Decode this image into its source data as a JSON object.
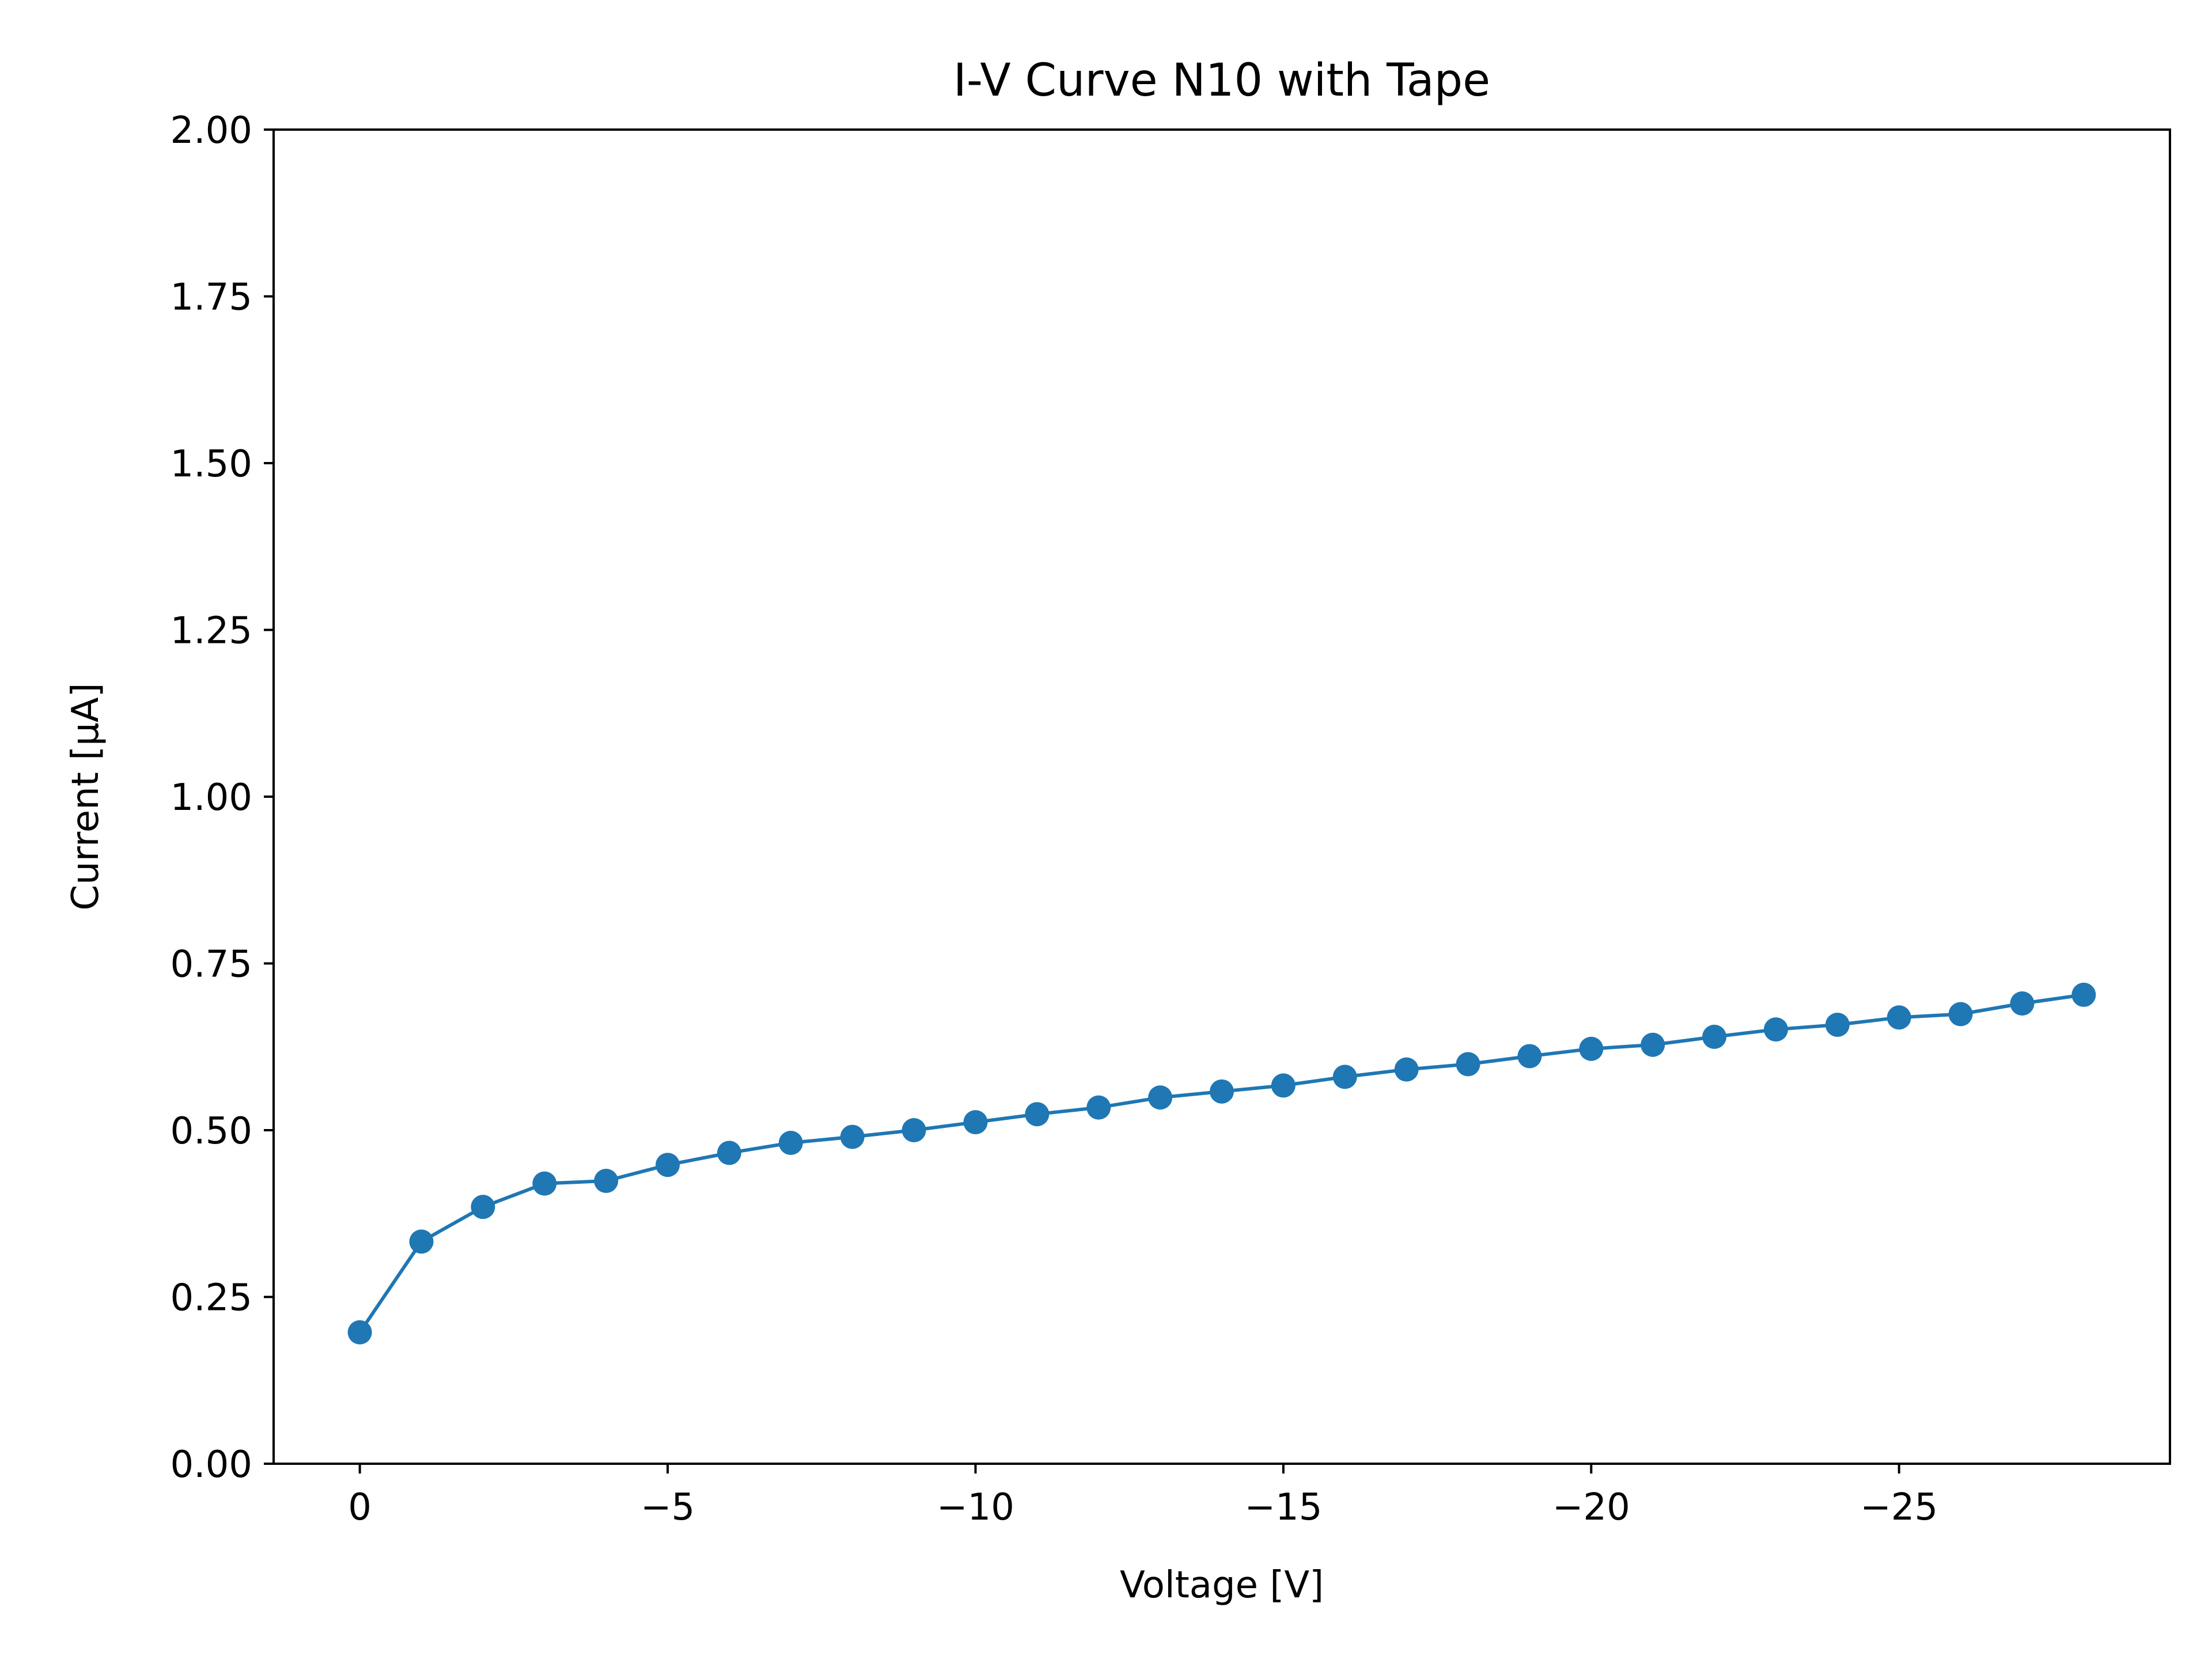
{
  "chart_data": {
    "type": "line",
    "title": "I-V Curve N10 with Tape",
    "xlabel": "Voltage [V]",
    "ylabel": "Current [μA]",
    "xlim": [
      1.4,
      -29.4
    ],
    "ylim": [
      0,
      2
    ],
    "x_inverted": true,
    "grid": false,
    "legend": "none",
    "xticks": [
      0,
      -5,
      -10,
      -15,
      -20,
      -25
    ],
    "xtick_labels": [
      "0",
      "−5",
      "−10",
      "−15",
      "−20",
      "−25"
    ],
    "yticks": [
      0,
      0.25,
      0.5,
      0.75,
      1.0,
      1.25,
      1.5,
      1.75,
      2.0
    ],
    "ytick_labels": [
      "0.00",
      "0.25",
      "0.50",
      "0.75",
      "1.00",
      "1.25",
      "1.50",
      "1.75",
      "2.00"
    ],
    "marker": "circle",
    "series": [
      {
        "color": "#1f77b4",
        "x": [
          0,
          -1,
          -2,
          -3,
          -4,
          -5,
          -6,
          -7,
          -8,
          -9,
          -10,
          -11,
          -12,
          -13,
          -14,
          -15,
          -16,
          -17,
          -18,
          -19,
          -20,
          -21,
          -22,
          -23,
          -24,
          -25,
          -26,
          -27,
          -28
        ],
        "y": [
          0.197,
          0.333,
          0.385,
          0.42,
          0.424,
          0.448,
          0.466,
          0.481,
          0.49,
          0.5,
          0.512,
          0.524,
          0.534,
          0.549,
          0.558,
          0.567,
          0.58,
          0.591,
          0.599,
          0.611,
          0.622,
          0.628,
          0.64,
          0.651,
          0.658,
          0.669,
          0.674,
          0.69,
          0.703
        ]
      }
    ]
  }
}
